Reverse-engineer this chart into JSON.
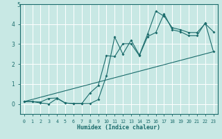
{
  "xlabel": "Humidex (Indice chaleur)",
  "background_color": "#c8e8e4",
  "grid_color": "#ffffff",
  "line_color": "#1a6b6b",
  "xlim": [
    -0.5,
    23.5
  ],
  "ylim": [
    -0.5,
    5.0
  ],
  "yticks": [
    0,
    1,
    2,
    3,
    4
  ],
  "xticks": [
    0,
    1,
    2,
    3,
    4,
    5,
    6,
    7,
    8,
    9,
    10,
    11,
    12,
    13,
    14,
    15,
    16,
    17,
    18,
    19,
    20,
    21,
    22,
    23
  ],
  "line1_x": [
    0,
    1,
    2,
    3,
    4,
    5,
    6,
    7,
    8,
    9,
    10,
    11,
    12,
    13,
    14,
    15,
    16,
    17,
    18,
    19,
    20,
    21,
    22,
    23
  ],
  "line1_y": [
    0.12,
    0.12,
    0.05,
    0.0,
    0.28,
    0.05,
    0.02,
    0.02,
    0.02,
    0.22,
    1.4,
    3.35,
    2.5,
    3.2,
    2.45,
    3.5,
    4.65,
    4.4,
    3.82,
    3.72,
    3.58,
    3.58,
    4.02,
    3.62
  ],
  "line2_x": [
    0,
    1,
    2,
    3,
    4,
    5,
    6,
    7,
    8,
    9,
    10,
    11,
    12,
    13,
    14,
    15,
    16,
    17,
    18,
    19,
    20,
    21,
    22,
    23
  ],
  "line2_y": [
    0.12,
    0.12,
    0.1,
    0.28,
    0.3,
    0.05,
    0.02,
    0.02,
    0.55,
    0.92,
    2.42,
    2.38,
    3.02,
    3.02,
    2.42,
    3.38,
    3.58,
    4.52,
    3.72,
    3.62,
    3.42,
    3.42,
    4.07,
    2.62
  ],
  "line3_x": [
    0,
    23
  ],
  "line3_y": [
    0.12,
    2.62
  ],
  "title_y_label": "5"
}
